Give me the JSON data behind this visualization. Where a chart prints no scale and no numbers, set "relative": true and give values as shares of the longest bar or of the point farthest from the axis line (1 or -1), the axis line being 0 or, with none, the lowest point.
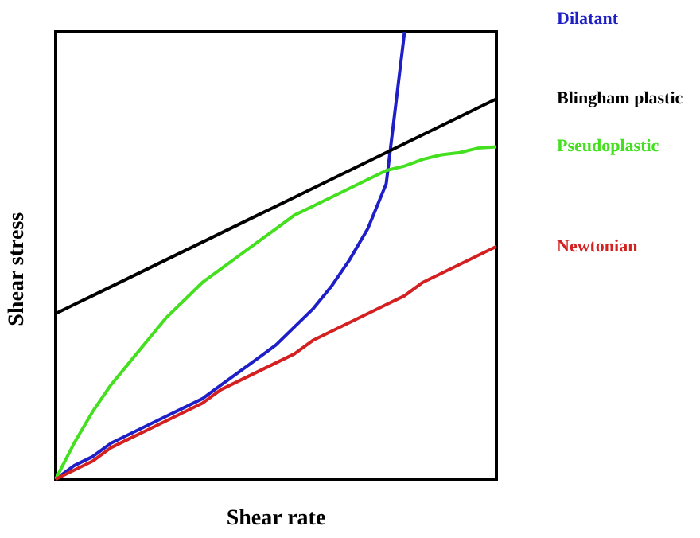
{
  "chart_data": {
    "type": "line",
    "relative": true,
    "xlabel": "Shear rate",
    "ylabel": "Shear stress",
    "categories": [
      null,
      null,
      null,
      null,
      null,
      null,
      null,
      null,
      null,
      null,
      null,
      null,
      null,
      null,
      null,
      null,
      null,
      null,
      null,
      null,
      null,
      null,
      null,
      null,
      null
    ],
    "series": [
      {
        "name": "Dilatant",
        "color": "#1f1fc8",
        "values": [
          0,
          0.03,
          0.05,
          0.08,
          0.1,
          0.12,
          0.14,
          0.16,
          0.18,
          0.21,
          0.24,
          0.27,
          0.3,
          0.34,
          0.38,
          0.43,
          0.49,
          0.56,
          0.66,
          1.0,
          null,
          null,
          null,
          null,
          null
        ]
      },
      {
        "name": "Blingham plastic",
        "color": "#000000",
        "values": [
          0.37,
          0.39,
          0.41,
          0.43,
          0.45,
          0.47,
          0.49,
          0.51,
          0.53,
          0.55,
          0.57,
          0.59,
          0.61,
          0.63,
          0.65,
          0.67,
          0.69,
          0.71,
          0.73,
          0.75,
          0.77,
          0.79,
          0.81,
          0.83,
          0.85
        ]
      },
      {
        "name": "Pseudoplastic",
        "color": "#44e020",
        "values": [
          0,
          0.08,
          0.15,
          0.21,
          0.26,
          0.31,
          0.36,
          0.4,
          0.44,
          0.47,
          0.5,
          0.53,
          0.56,
          0.59,
          0.61,
          0.63,
          0.65,
          0.67,
          0.69,
          0.7,
          0.715,
          0.725,
          0.73,
          0.74,
          0.743
        ]
      },
      {
        "name": "Newtonian",
        "color": "#d42020",
        "values": [
          0,
          0.02,
          0.04,
          0.07,
          0.09,
          0.11,
          0.13,
          0.15,
          0.17,
          0.2,
          0.22,
          0.24,
          0.26,
          0.28,
          0.31,
          0.33,
          0.35,
          0.37,
          0.39,
          0.41,
          0.44,
          0.46,
          0.48,
          0.5,
          0.52
        ]
      }
    ]
  }
}
